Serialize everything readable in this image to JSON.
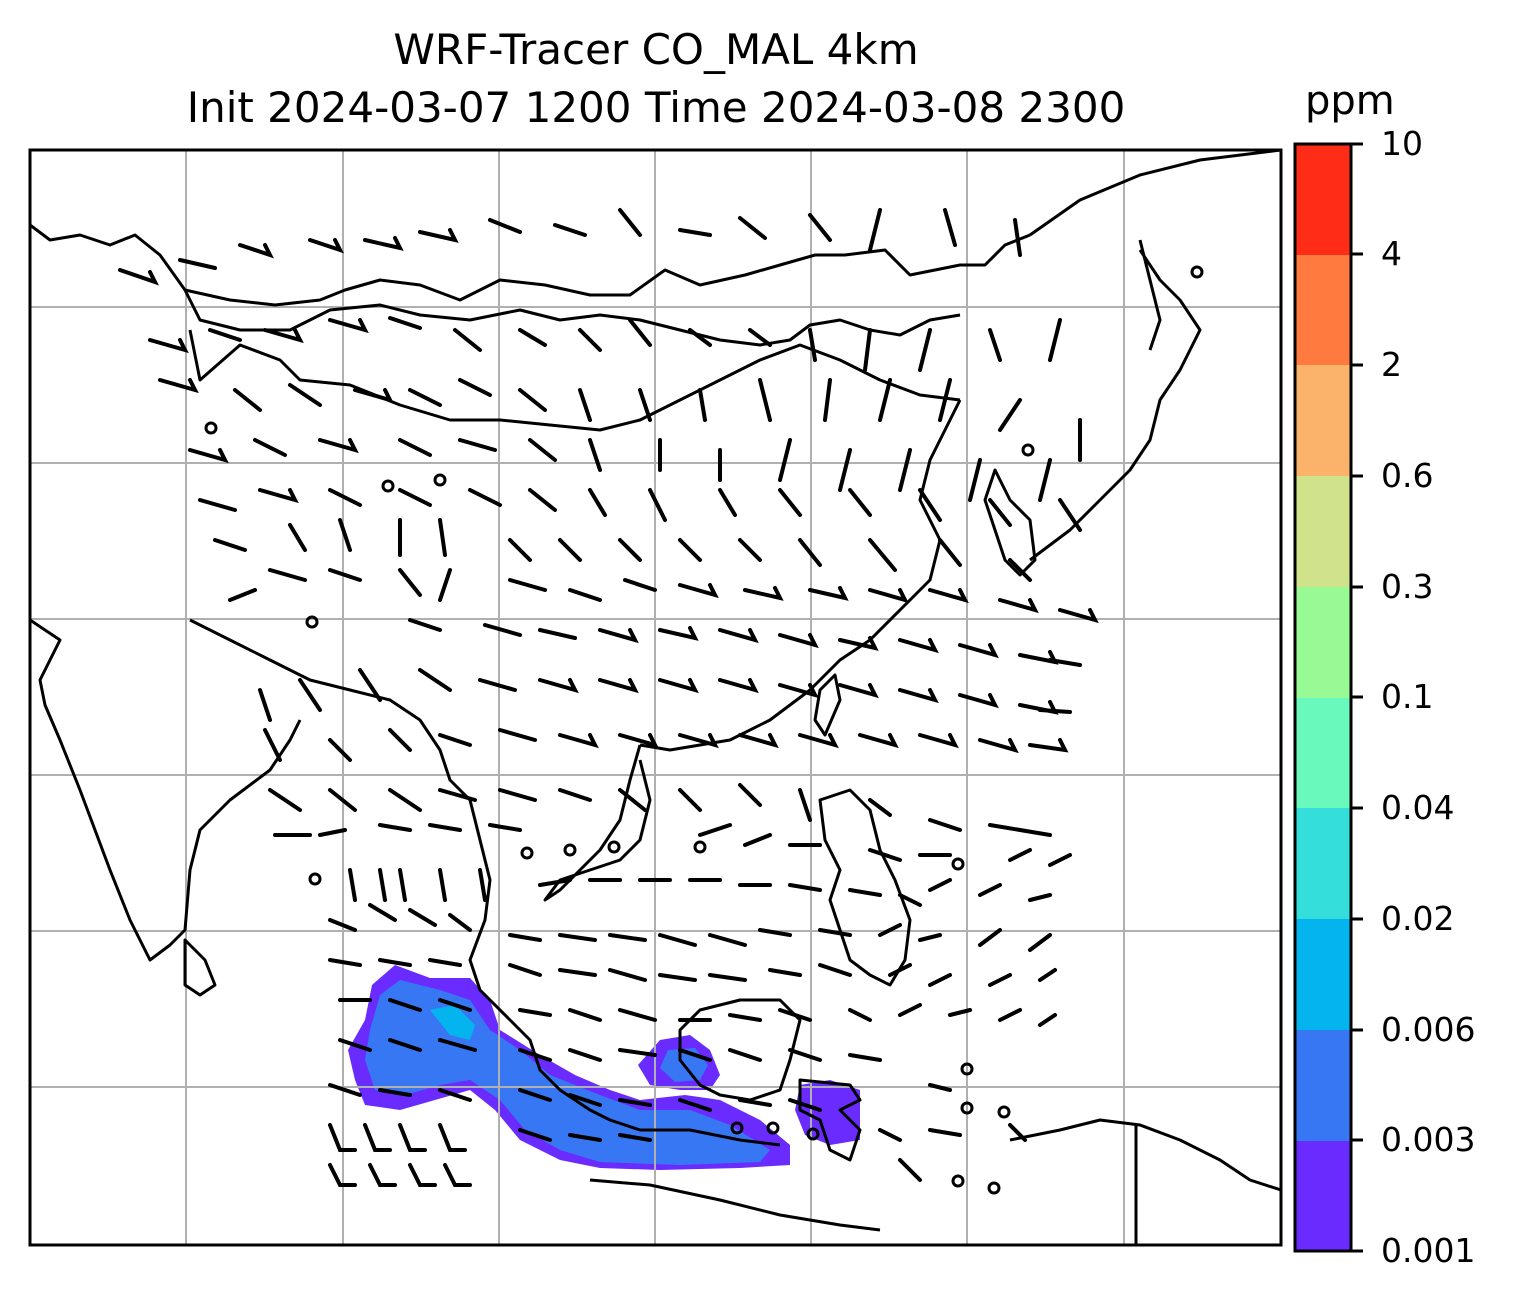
{
  "title": {
    "line1": "WRF-Tracer CO_MAL 4km",
    "line2": "Init 2024-03-07 1200 Time 2024-03-08 2300"
  },
  "colorbar": {
    "unit": "ppm",
    "ticks": [
      "0.001",
      "0.003",
      "0.006",
      "0.02",
      "0.04",
      "0.1",
      "0.3",
      "0.6",
      "2",
      "4",
      "10"
    ],
    "colors": [
      "#6a2bff",
      "#3877f3",
      "#03b4ee",
      "#34dfdb",
      "#69f9bc",
      "#98fa95",
      "#d0e38a",
      "#fbb26a",
      "#ff7a3e",
      "#ff2d18"
    ]
  },
  "map": {
    "tracer_palette": {
      "lowest": "#6a2bff",
      "low": "#3877f3",
      "mid": "#03b4ee"
    },
    "gridline_color": "#b0b0b0",
    "coastline_color": "#000000",
    "wind_barbs": "black"
  }
}
